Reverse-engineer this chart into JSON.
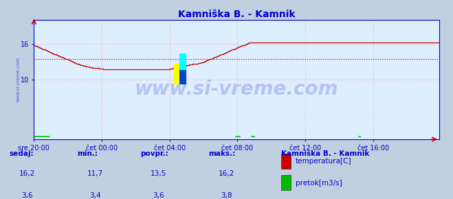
{
  "title": "Kamniška B. - Kamnik",
  "title_color": "#0000cc",
  "plot_bg_color": "#ddeeff",
  "outer_bg_color": "#c0d0e0",
  "grid_color": "#ffaaaa",
  "xlim": [
    0,
    287
  ],
  "ylim": [
    0,
    20
  ],
  "yticks": [
    10,
    16
  ],
  "xtick_labels": [
    "sre 20:00",
    "čet 00:00",
    "čet 04:00",
    "čet 08:00",
    "čet 12:00",
    "čet 16:00"
  ],
  "xtick_positions": [
    0,
    48,
    96,
    144,
    192,
    240
  ],
  "avg_line_y": 13.5,
  "avg_line_color": "#cc0000",
  "temp_color": "#cc0000",
  "flow_color": "#00bb00",
  "axis_color": "#0000cc",
  "watermark": "www.si-vreme.com",
  "watermark_color": "#0000cc",
  "watermark_alpha": 0.18,
  "legend_title": "Kamniška B. - Kamnik",
  "legend_title_color": "#0000cc",
  "legend_items": [
    "temperatura[C]",
    "pretok[m3/s]"
  ],
  "legend_colors": [
    "#cc0000",
    "#00bb00"
  ],
  "table_headers": [
    "sedaj:",
    "min.:",
    "povpr.:",
    "maks.:"
  ],
  "table_temp": [
    "16,2",
    "11,7",
    "13,5",
    "16,2"
  ],
  "table_flow": [
    "3,6",
    "3,4",
    "3,6",
    "3,8"
  ],
  "table_color": "#0000cc",
  "temp_data": [
    15.7,
    15.6,
    15.5,
    15.4,
    15.3,
    15.2,
    15.1,
    15.0,
    14.9,
    14.8,
    14.7,
    14.6,
    14.5,
    14.4,
    14.3,
    14.2,
    14.1,
    14.0,
    13.9,
    13.8,
    13.7,
    13.6,
    13.5,
    13.4,
    13.3,
    13.2,
    13.1,
    13.0,
    12.9,
    12.8,
    12.7,
    12.6,
    12.5,
    12.4,
    12.4,
    12.3,
    12.3,
    12.2,
    12.2,
    12.1,
    12.1,
    12.0,
    12.0,
    11.9,
    11.9,
    11.9,
    11.8,
    11.8,
    11.8,
    11.7,
    11.7,
    11.7,
    11.7,
    11.7,
    11.7,
    11.7,
    11.7,
    11.7,
    11.7,
    11.7,
    11.7,
    11.7,
    11.7,
    11.7,
    11.7,
    11.7,
    11.7,
    11.7,
    11.7,
    11.7,
    11.7,
    11.7,
    11.7,
    11.7,
    11.7,
    11.7,
    11.7,
    11.7,
    11.7,
    11.7,
    11.7,
    11.7,
    11.7,
    11.7,
    11.7,
    11.7,
    11.7,
    11.7,
    11.7,
    11.7,
    11.7,
    11.7,
    11.7,
    11.7,
    11.7,
    11.7,
    11.8,
    11.8,
    11.9,
    11.9,
    12.0,
    12.0,
    12.1,
    12.1,
    12.2,
    12.2,
    12.3,
    12.3,
    12.4,
    12.4,
    12.5,
    12.5,
    12.6,
    12.6,
    12.7,
    12.7,
    12.8,
    12.8,
    12.9,
    12.9,
    13.0,
    13.1,
    13.2,
    13.3,
    13.4,
    13.5,
    13.6,
    13.7,
    13.8,
    13.9,
    14.0,
    14.1,
    14.2,
    14.3,
    14.4,
    14.5,
    14.6,
    14.7,
    14.8,
    14.9,
    15.0,
    15.1,
    15.2,
    15.3,
    15.4,
    15.5,
    15.6,
    15.7,
    15.8,
    15.9,
    16.0,
    16.1,
    16.2,
    16.2,
    16.2,
    16.2,
    16.2,
    16.2,
    16.2,
    16.2,
    16.2,
    16.2,
    16.2,
    16.2,
    16.2,
    16.2,
    16.2,
    16.2,
    16.2,
    16.2,
    16.2,
    16.2,
    16.2,
    16.2,
    16.2,
    16.2,
    16.2,
    16.2,
    16.2,
    16.2,
    16.2,
    16.2,
    16.2,
    16.2,
    16.2,
    16.2,
    16.2,
    16.2,
    16.2,
    16.2,
    16.2,
    16.2,
    16.2,
    16.2,
    16.2,
    16.2,
    16.2,
    16.2,
    16.2,
    16.2,
    16.2,
    16.2,
    16.2,
    16.2,
    16.2,
    16.2,
    16.2,
    16.2,
    16.2,
    16.2,
    16.2,
    16.2,
    16.2,
    16.2,
    16.2,
    16.2,
    16.2,
    16.2,
    16.2,
    16.2,
    16.2,
    16.2,
    16.2,
    16.2,
    16.2,
    16.2,
    16.2,
    16.2,
    16.2,
    16.2,
    16.2,
    16.2,
    16.2,
    16.2,
    16.2,
    16.2,
    16.2,
    16.2,
    16.2,
    16.2,
    16.2,
    16.2,
    16.2,
    16.2,
    16.2,
    16.2,
    16.2,
    16.2,
    16.2,
    16.2,
    16.2,
    16.2,
    16.2,
    16.2,
    16.2,
    16.2,
    16.2,
    16.2,
    16.2,
    16.2,
    16.2,
    16.2,
    16.2,
    16.2,
    16.2,
    16.2,
    16.2,
    16.2,
    16.2,
    16.2,
    16.2,
    16.2,
    16.2,
    16.2,
    16.2,
    16.2,
    16.2,
    16.2,
    16.2,
    16.2,
    16.2,
    16.2,
    16.2,
    16.2,
    16.2,
    16.2,
    16.2,
    16.2
  ],
  "flow_data": [
    3.6,
    3.6,
    3.6,
    3.6,
    3.6,
    3.6,
    3.6,
    3.6,
    3.6,
    3.6,
    3.6,
    3.5,
    0.0,
    0.0,
    0.0,
    0.0,
    0.0,
    0.0,
    0.0,
    0.0,
    0.0,
    0.0,
    0.0,
    0.0,
    0.0,
    0.0,
    0.0,
    0.0,
    0.0,
    0.0,
    0.0,
    0.0,
    0.0,
    0.0,
    0.0,
    0.0,
    0.0,
    0.0,
    0.0,
    0.0,
    0.0,
    0.0,
    0.0,
    0.0,
    0.0,
    0.0,
    0.0,
    0.0,
    0.0,
    0.0,
    0.0,
    0.0,
    0.0,
    0.0,
    0.0,
    0.0,
    0.0,
    0.0,
    0.0,
    0.0,
    0.0,
    0.0,
    0.0,
    0.0,
    0.0,
    0.0,
    0.0,
    0.0,
    0.0,
    0.0,
    0.0,
    0.0,
    0.0,
    0.0,
    0.0,
    0.0,
    0.0,
    0.0,
    0.0,
    0.0,
    0.0,
    0.0,
    0.0,
    0.0,
    0.0,
    0.0,
    0.0,
    0.0,
    0.0,
    0.0,
    0.0,
    0.0,
    0.0,
    0.0,
    0.0,
    0.0,
    0.0,
    0.0,
    0.0,
    0.0,
    0.0,
    0.0,
    0.0,
    0.0,
    0.0,
    0.0,
    0.0,
    0.0,
    0.0,
    0.0,
    0.0,
    0.0,
    0.0,
    0.0,
    0.0,
    0.0,
    0.0,
    0.0,
    0.0,
    0.0,
    0.0,
    0.0,
    0.0,
    0.0,
    0.0,
    0.0,
    0.0,
    0.0,
    0.0,
    0.0,
    0.0,
    0.0,
    0.0,
    0.0,
    0.0,
    0.0,
    0.0,
    0.0,
    0.0,
    0.0,
    0.0,
    0.0,
    0.0,
    3.6,
    3.6,
    3.6,
    3.6,
    0.0,
    0.0,
    0.0,
    0.0,
    0.0,
    0.0,
    0.0,
    3.5,
    3.5,
    3.5,
    0.0,
    0.0,
    0.0,
    0.0,
    0.0,
    0.0,
    0.0,
    0.0,
    0.0,
    0.0,
    0.0,
    0.0,
    0.0,
    0.0,
    0.0,
    0.0,
    0.0,
    0.0,
    0.0,
    0.0,
    0.0,
    0.0,
    0.0,
    0.0,
    0.0,
    0.0,
    0.0,
    0.0,
    0.0,
    0.0,
    0.0,
    0.0,
    0.0,
    0.0,
    0.0,
    0.0,
    0.0,
    0.0,
    0.0,
    0.0,
    0.0,
    0.0,
    0.0,
    0.0,
    0.0,
    0.0,
    0.0,
    0.0,
    0.0,
    0.0,
    0.0,
    0.0,
    0.0,
    0.0,
    0.0,
    0.0,
    0.0,
    0.0,
    0.0,
    0.0,
    0.0,
    0.0,
    0.0,
    0.0,
    0.0,
    0.0,
    0.0,
    0.0,
    0.0,
    0.0,
    0.0,
    0.0,
    0.0,
    3.5,
    3.5,
    0.0,
    0.0,
    0.0,
    0.0,
    0.0,
    0.0,
    0.0,
    0.0,
    0.0,
    0.0,
    0.0,
    0.0,
    0.0,
    0.0,
    0.0,
    0.0,
    0.0,
    0.0,
    0.0,
    0.0,
    0.0,
    0.0,
    0.0,
    0.0,
    0.0,
    0.0,
    0.0,
    0.0,
    0.0,
    0.0,
    0.0,
    0.0,
    0.0,
    0.0,
    0.0,
    0.0,
    0.0,
    0.0,
    0.0,
    0.0,
    0.0,
    0.0,
    0.0,
    0.0,
    0.0,
    0.0
  ]
}
